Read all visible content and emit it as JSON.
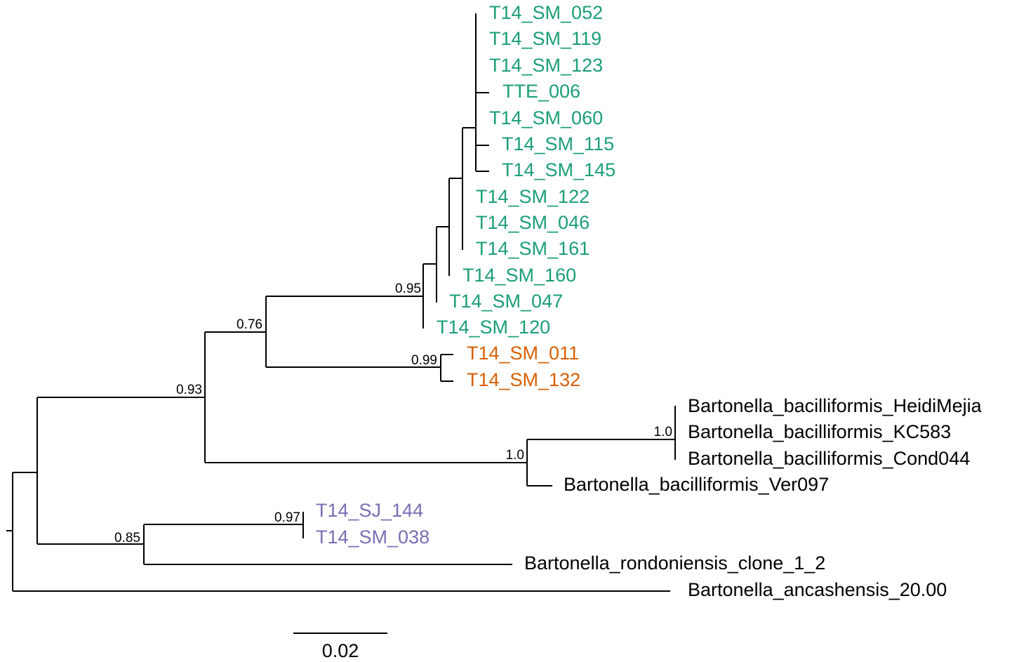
{
  "colors": {
    "branch": "#000000",
    "clade_green": "#1b9e77",
    "clade_orange": "#d95f02",
    "clade_purple": "#7570b3",
    "outgroup_text": "#000000"
  },
  "tips": {
    "t1": "T14_SM_052",
    "t2": "T14_SM_119",
    "t3": "T14_SM_123",
    "t4": "TTE_006",
    "t5": "T14_SM_060",
    "t6": "T14_SM_115",
    "t7": "T14_SM_145",
    "t8": "T14_SM_122",
    "t9": "T14_SM_046",
    "t10": "T14_SM_161",
    "t11": "T14_SM_160",
    "t12": "T14_SM_047",
    "t13": "T14_SM_120",
    "t14": "T14_SM_011",
    "t15": "T14_SM_132",
    "t16": "Bartonella_bacilliformis_HeidiMejia",
    "t17": "Bartonella_bacilliformis_KC583",
    "t18": "Bartonella_bacilliformis_Cond044",
    "t19": "Bartonella_bacilliformis_Ver097",
    "t20": "T14_SJ_144",
    "t21": "T14_SM_038",
    "t22": "Bartonella_rondoniensis_clone_1_2",
    "t23": "Bartonella_ancashensis_20.00"
  },
  "support": {
    "s095": "0.95",
    "s076": "0.76",
    "s099": "0.99",
    "s093": "0.93",
    "s10a": "1.0",
    "s10b": "1.0",
    "s097": "0.97",
    "s085": "0.85"
  },
  "scale_bar": {
    "label": "0.02"
  }
}
